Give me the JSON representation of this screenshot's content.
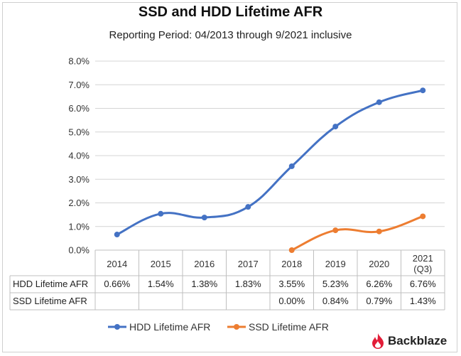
{
  "chart_data": {
    "type": "line",
    "title": "SSD and HDD Lifetime AFR",
    "subtitle": "Reporting Period: 04/2013 through 9/2021 inclusive",
    "categories": [
      "2014",
      "2015",
      "2016",
      "2017",
      "2018",
      "2019",
      "2020",
      "2021 (Q3)"
    ],
    "category_lines": [
      [
        "2014"
      ],
      [
        "2015"
      ],
      [
        "2016"
      ],
      [
        "2017"
      ],
      [
        "2018"
      ],
      [
        "2019"
      ],
      [
        "2020"
      ],
      [
        "2021",
        "(Q3)"
      ]
    ],
    "y_ticks": [
      "0.0%",
      "1.0%",
      "2.0%",
      "3.0%",
      "4.0%",
      "5.0%",
      "6.0%",
      "7.0%",
      "8.0%"
    ],
    "ylim": [
      0,
      8
    ],
    "grid": true,
    "legend_position": "bottom",
    "series": [
      {
        "name": "HDD Lifetime AFR",
        "color": "#4472C4",
        "values": [
          0.66,
          1.54,
          1.38,
          1.83,
          3.55,
          5.23,
          6.26,
          6.76
        ],
        "labels": [
          "0.66%",
          "1.54%",
          "1.38%",
          "1.83%",
          "3.55%",
          "5.23%",
          "6.26%",
          "6.76%"
        ]
      },
      {
        "name": "SSD Lifetime AFR",
        "color": "#ED7D31",
        "values": [
          null,
          null,
          null,
          null,
          0.0,
          0.84,
          0.79,
          1.43
        ],
        "labels": [
          "",
          "",
          "",
          "",
          "0.00%",
          "0.84%",
          "0.79%",
          "1.43%"
        ]
      }
    ]
  },
  "brand": {
    "name": "Backblaze",
    "logo_icon": "flame-icon",
    "logo_color": "#E21D38"
  }
}
